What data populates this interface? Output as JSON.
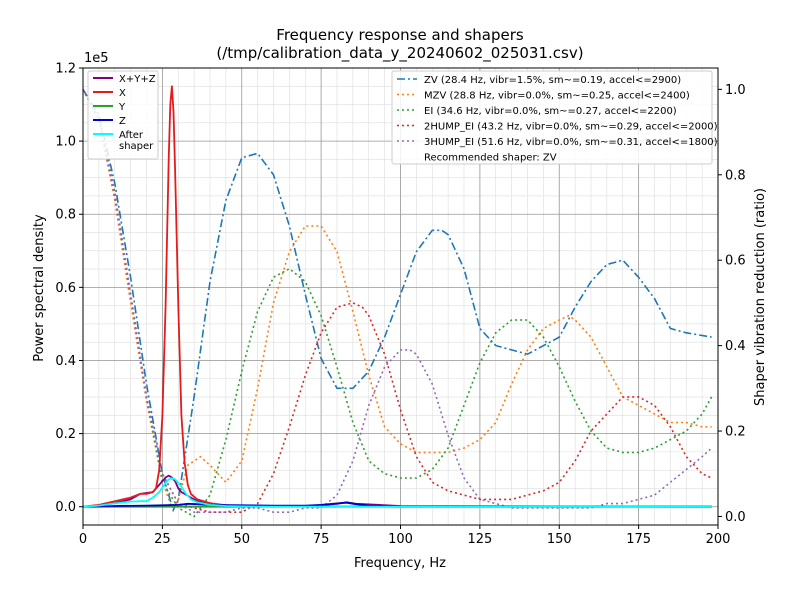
{
  "chart_data": {
    "type": "line",
    "title_line1": "Frequency response and shapers",
    "title_line2": "(/tmp/calibration_data_y_20240602_025031.csv)",
    "xlabel": "Frequency, Hz",
    "ylabel": "Power spectral density",
    "y2label": "Shaper vibration reduction (ratio)",
    "y_offset_text": "1e5",
    "xlim": [
      0,
      200
    ],
    "ylim": [
      -5000,
      120000
    ],
    "y2lim": [
      -0.02,
      1.05
    ],
    "xticks": [
      0,
      25,
      50,
      75,
      100,
      125,
      150,
      175,
      200
    ],
    "xtick_labels": [
      "0",
      "25",
      "50",
      "75",
      "100",
      "125",
      "150",
      "175",
      "200"
    ],
    "yticks": [
      0,
      20000,
      40000,
      60000,
      80000,
      100000,
      120000
    ],
    "ytick_labels": [
      "0.0",
      "0.2",
      "0.4",
      "0.6",
      "0.8",
      "1.0",
      "1.2"
    ],
    "y2ticks": [
      0,
      0.2,
      0.4,
      0.6,
      0.8,
      1.0
    ],
    "y2tick_labels": [
      "0.0",
      "0.2",
      "0.4",
      "0.6",
      "0.8",
      "1.0"
    ],
    "grid": true,
    "psd_series": [
      {
        "name": "X+Y+Z",
        "color": "#800080",
        "x": [
          0,
          5,
          10,
          15,
          18,
          22,
          24,
          26,
          27,
          28,
          29,
          30,
          31,
          32,
          34,
          36,
          40,
          45,
          50,
          60,
          70,
          80,
          83,
          86,
          100,
          150,
          198
        ],
        "y": [
          0,
          300,
          1000,
          2000,
          3500,
          4000,
          6000,
          8000,
          8500,
          8000,
          7000,
          5000,
          4000,
          3500,
          2500,
          1500,
          800,
          300,
          200,
          100,
          100,
          800,
          1200,
          800,
          200,
          100,
          100
        ]
      },
      {
        "name": "X",
        "color": "#e41a1c",
        "x": [
          0,
          5,
          10,
          15,
          18,
          20,
          22,
          23,
          24,
          25,
          26,
          27,
          27.5,
          28,
          28.5,
          29,
          30,
          31,
          32,
          33,
          34,
          36,
          40,
          45,
          50,
          60,
          100,
          198
        ],
        "y": [
          0,
          500,
          1500,
          2500,
          3500,
          3500,
          4000,
          5000,
          10000,
          25000,
          55000,
          95000,
          110000,
          115000,
          108000,
          92000,
          55000,
          25000,
          12000,
          6000,
          3500,
          2000,
          1000,
          400,
          200,
          100,
          0,
          0
        ]
      },
      {
        "name": "Y",
        "color": "#2ca02c",
        "x": [
          0,
          198
        ],
        "y": [
          0,
          0
        ]
      },
      {
        "name": "Z",
        "color": "#0000cc",
        "x": [
          0,
          5,
          10,
          20,
          25,
          30,
          33,
          36,
          40,
          50,
          60,
          70,
          75,
          80,
          83,
          86,
          90,
          100,
          198
        ],
        "y": [
          0,
          100,
          200,
          300,
          400,
          500,
          800,
          700,
          500,
          400,
          300,
          300,
          500,
          900,
          1100,
          700,
          300,
          100,
          0
        ]
      },
      {
        "name": "After\nshaper",
        "color": "#00ffff",
        "x": [
          0,
          5,
          10,
          15,
          18,
          20,
          22,
          24,
          26,
          27,
          28,
          29,
          30,
          31,
          32,
          34,
          36,
          40,
          45,
          50,
          60,
          100,
          198
        ],
        "y": [
          0,
          300,
          900,
          1400,
          1500,
          1500,
          2500,
          4000,
          6500,
          7500,
          7800,
          7500,
          6500,
          5500,
          4000,
          2000,
          1200,
          500,
          200,
          100,
          0,
          0,
          0
        ]
      }
    ],
    "shaper_series": [
      {
        "name": "ZV (28.4 Hz, vibr=1.5%, sm~=0.19, accel<=2900)",
        "color": "#1f77b4",
        "dash": "8,3,2,3",
        "x": [
          0,
          5,
          10,
          15,
          20,
          25,
          28.4,
          30,
          35,
          40,
          45,
          50,
          55,
          60,
          65,
          70,
          75,
          80,
          85,
          90,
          95,
          100,
          105,
          110,
          113,
          115,
          120,
          125,
          130,
          140,
          150,
          155,
          160,
          165,
          170,
          175,
          180,
          185,
          190,
          198
        ],
        "y": [
          1.0,
          0.94,
          0.78,
          0.56,
          0.31,
          0.1,
          0.015,
          0.04,
          0.28,
          0.55,
          0.74,
          0.84,
          0.85,
          0.8,
          0.68,
          0.52,
          0.37,
          0.3,
          0.3,
          0.34,
          0.42,
          0.52,
          0.62,
          0.67,
          0.67,
          0.66,
          0.58,
          0.44,
          0.4,
          0.38,
          0.42,
          0.49,
          0.55,
          0.59,
          0.6,
          0.56,
          0.51,
          0.44,
          0.43,
          0.42
        ]
      },
      {
        "name": "MZV (28.8 Hz, vibr=0.0%, sm~=0.25, accel<=2400)",
        "color": "#ff7f0e",
        "dash": "2,3",
        "x": [
          0,
          5,
          10,
          15,
          20,
          25,
          28,
          30,
          33,
          37,
          40,
          45,
          50,
          55,
          60,
          65,
          70,
          75,
          80,
          85,
          90,
          95,
          100,
          105,
          110,
          115,
          120,
          125,
          130,
          135,
          140,
          145,
          150,
          153,
          155,
          160,
          165,
          170,
          175,
          180,
          185,
          190,
          195,
          198
        ],
        "y": [
          1.0,
          0.93,
          0.74,
          0.5,
          0.27,
          0.08,
          0.02,
          0.04,
          0.12,
          0.14,
          0.12,
          0.08,
          0.13,
          0.3,
          0.5,
          0.62,
          0.68,
          0.68,
          0.62,
          0.48,
          0.33,
          0.21,
          0.17,
          0.15,
          0.15,
          0.15,
          0.16,
          0.18,
          0.22,
          0.31,
          0.39,
          0.44,
          0.46,
          0.47,
          0.46,
          0.42,
          0.35,
          0.28,
          0.26,
          0.24,
          0.22,
          0.22,
          0.21,
          0.21
        ]
      },
      {
        "name": "EI (34.6 Hz, vibr=0.0%, sm~=0.27, accel<=2200)",
        "color": "#2ca02c",
        "dash": "2,3",
        "x": [
          0,
          5,
          10,
          15,
          20,
          25,
          30,
          35,
          40,
          45,
          50,
          55,
          60,
          65,
          70,
          75,
          80,
          85,
          90,
          95,
          100,
          105,
          110,
          115,
          120,
          125,
          130,
          135,
          140,
          145,
          150,
          155,
          160,
          165,
          170,
          175,
          180,
          185,
          190,
          195,
          198
        ],
        "y": [
          1.0,
          0.93,
          0.76,
          0.52,
          0.28,
          0.08,
          0.02,
          0.0,
          0.05,
          0.18,
          0.34,
          0.48,
          0.56,
          0.58,
          0.55,
          0.47,
          0.35,
          0.22,
          0.13,
          0.1,
          0.09,
          0.09,
          0.11,
          0.16,
          0.26,
          0.36,
          0.43,
          0.46,
          0.46,
          0.42,
          0.35,
          0.27,
          0.2,
          0.16,
          0.15,
          0.15,
          0.16,
          0.18,
          0.2,
          0.24,
          0.28
        ]
      },
      {
        "name": "2HUMP_EI (43.2 Hz, vibr=0.0%, sm~=0.29, accel<=2000)",
        "color": "#d62728",
        "dash": "2,3",
        "x": [
          0,
          5,
          10,
          15,
          20,
          25,
          30,
          35,
          40,
          45,
          50,
          55,
          60,
          65,
          70,
          75,
          80,
          85,
          88,
          90,
          95,
          100,
          105,
          110,
          115,
          120,
          125,
          130,
          135,
          140,
          145,
          150,
          155,
          160,
          165,
          170,
          175,
          180,
          185,
          190,
          195,
          198
        ],
        "y": [
          1.0,
          0.93,
          0.75,
          0.52,
          0.28,
          0.1,
          0.03,
          0.02,
          0.01,
          0.01,
          0.01,
          0.03,
          0.1,
          0.21,
          0.33,
          0.43,
          0.49,
          0.5,
          0.49,
          0.47,
          0.38,
          0.25,
          0.14,
          0.08,
          0.06,
          0.05,
          0.04,
          0.04,
          0.04,
          0.05,
          0.06,
          0.08,
          0.13,
          0.2,
          0.24,
          0.28,
          0.28,
          0.26,
          0.21,
          0.14,
          0.1,
          0.09
        ]
      },
      {
        "name": "3HUMP_EI (51.6 Hz, vibr=0.0%, sm~=0.31, accel<=1800)",
        "color": "#9467bd",
        "dash": "2,3",
        "x": [
          0,
          5,
          10,
          15,
          20,
          25,
          30,
          35,
          40,
          45,
          50,
          55,
          60,
          65,
          70,
          75,
          80,
          85,
          90,
          95,
          100,
          103,
          105,
          110,
          115,
          120,
          125,
          130,
          135,
          140,
          145,
          150,
          155,
          160,
          165,
          170,
          175,
          180,
          185,
          190,
          195,
          198
        ],
        "y": [
          1.0,
          0.93,
          0.75,
          0.52,
          0.28,
          0.1,
          0.03,
          0.01,
          0.01,
          0.01,
          0.02,
          0.02,
          0.01,
          0.01,
          0.02,
          0.02,
          0.05,
          0.13,
          0.26,
          0.35,
          0.39,
          0.39,
          0.38,
          0.31,
          0.19,
          0.09,
          0.04,
          0.03,
          0.02,
          0.02,
          0.02,
          0.02,
          0.02,
          0.02,
          0.03,
          0.03,
          0.04,
          0.05,
          0.08,
          0.11,
          0.14,
          0.16
        ]
      }
    ],
    "legend_left_placement": "upper-left",
    "legend_right_placement": "upper-right",
    "recommended_text": "Recommended shaper: ZV"
  }
}
